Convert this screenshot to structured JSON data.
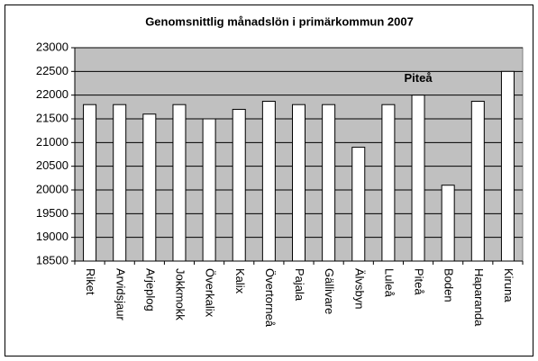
{
  "chart_data": {
    "type": "bar",
    "title": "Genomsnittlig månadslön i primärkommun 2007",
    "categories": [
      "Riket",
      "Arvidsjaur",
      "Arjeplog",
      "Jokkmokk",
      "Överkalix",
      "Kalix",
      "Övertorneå",
      "Pajala",
      "Gällivare",
      "Älvsbyn",
      "Luleå",
      "Piteå",
      "Boden",
      "Haparanda",
      "Kiruna"
    ],
    "values": [
      21800,
      21800,
      21600,
      21800,
      21500,
      21700,
      21870,
      21800,
      21800,
      20900,
      21800,
      22000,
      20100,
      21870,
      22500
    ],
    "color": "#ffffff",
    "plot_background": "#c0c0c0",
    "ylim": [
      18500,
      23000
    ],
    "yticks": [
      18500,
      19000,
      19500,
      20000,
      20500,
      21000,
      21500,
      22000,
      22500,
      23000
    ],
    "grid": true,
    "annotation": "Piteå"
  }
}
